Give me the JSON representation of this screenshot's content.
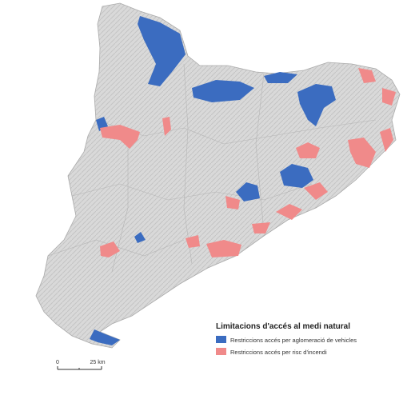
{
  "legend": {
    "title": "Limitacions d'accés al medi natural",
    "items": [
      {
        "label": "Restriccions accés per aglomeració de vehicles",
        "color": "#3b6cc0"
      },
      {
        "label": "Restriccions accés per risc d'incendi",
        "color": "#f08a8a"
      }
    ]
  },
  "scale_bar": {
    "labels": [
      "0",
      "25 km"
    ]
  }
}
